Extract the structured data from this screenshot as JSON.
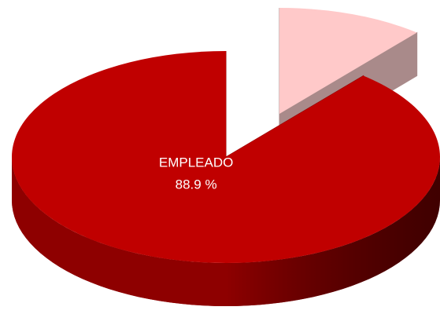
{
  "chart_data": {
    "type": "pie",
    "categories": [
      "EMPLEADO",
      null
    ],
    "values": [
      88.9,
      11.1
    ],
    "value_labels": [
      "88.9 %",
      null
    ],
    "colors": [
      "#c00000",
      "#ffc9c9"
    ],
    "side_colors": [
      "#8e0000",
      "#a98a8a"
    ]
  }
}
